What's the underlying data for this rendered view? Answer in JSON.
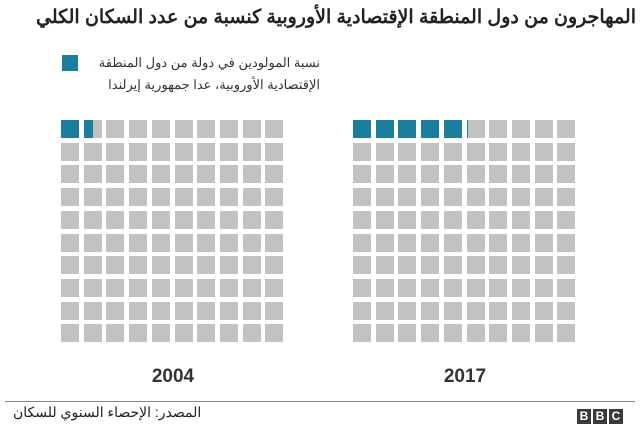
{
  "title": "المهاجرون من دول المنطقة الإقتصادية الأوروبية كنسبة من عدد السكان الكلي",
  "legend": {
    "label": "نسبة المولودين في دولة من دول المنطقة الإقتصادية الأوروبية، عدا جمهورية إيرلندا",
    "color": "#1a7e9c"
  },
  "chart_data": {
    "type": "waffle",
    "grid": [
      10,
      10
    ],
    "empty_color": "#c2c2c2",
    "fill_color": "#1a7e9c",
    "series": [
      {
        "label": "2004",
        "percent": 1.5
      },
      {
        "label": "2017",
        "percent": 5.1
      }
    ]
  },
  "footer": {
    "source": "المصدر: الإحصاء السنوي للسكان",
    "logo": "BBC"
  }
}
